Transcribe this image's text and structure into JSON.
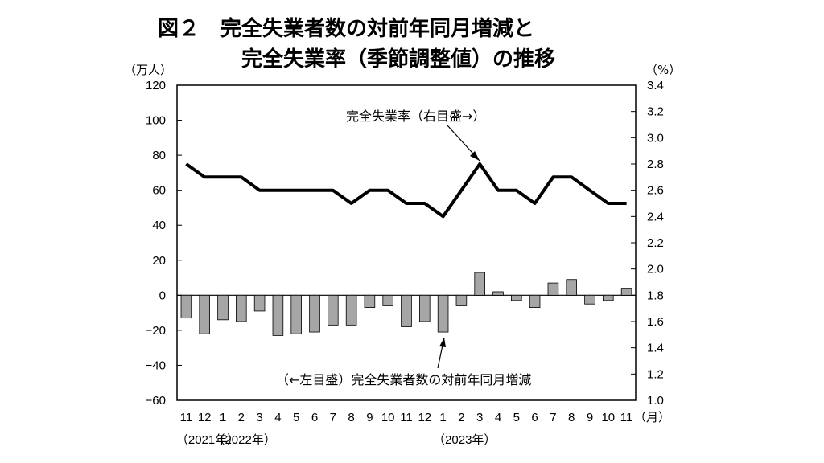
{
  "chart_data": {
    "type": "bar+line",
    "title_line1": "図２　完全失業者数の対前年同月増減と",
    "title_line2": "完全失業率（季節調整値）の推移",
    "left_unit": "（万人）",
    "right_unit": "（%）",
    "month_unit": "（月）",
    "categories": [
      "11",
      "12",
      "1",
      "2",
      "3",
      "4",
      "5",
      "6",
      "7",
      "8",
      "9",
      "10",
      "11",
      "12",
      "1",
      "2",
      "3",
      "4",
      "5",
      "6",
      "7",
      "8",
      "9",
      "10",
      "11"
    ],
    "year_labels": [
      {
        "index": 0,
        "label": "（2021年）"
      },
      {
        "index": 2,
        "label": "（2022年）"
      },
      {
        "index": 14,
        "label": "（2023年）"
      }
    ],
    "left_axis": {
      "min": -60,
      "max": 120,
      "ticks": [
        120,
        100,
        80,
        60,
        40,
        20,
        0,
        -20,
        -40,
        -60
      ]
    },
    "right_axis": {
      "min": 1.0,
      "max": 3.4,
      "ticks": [
        "3.4",
        "3.2",
        "3.0",
        "2.8",
        "2.6",
        "2.4",
        "2.2",
        "2.0",
        "1.8",
        "1.6",
        "1.4",
        "1.2",
        "1.0"
      ]
    },
    "series": [
      {
        "name": "（←左目盛）完全失業者数の対前年同月増減",
        "kind": "bar",
        "axis": "left",
        "color": "#a6a6a6",
        "values": [
          -13,
          -22,
          -14,
          -15,
          -9,
          -23,
          -22,
          -21,
          -17,
          -17,
          -7,
          -6,
          -18,
          -15,
          -21,
          -6,
          13,
          2,
          -3,
          -7,
          7,
          9,
          -5,
          -3,
          4
        ]
      },
      {
        "name": "完全失業率（右目盛→）",
        "kind": "line",
        "axis": "right",
        "color": "#000000",
        "values": [
          2.8,
          2.7,
          2.7,
          2.7,
          2.6,
          2.6,
          2.6,
          2.6,
          2.6,
          2.5,
          2.6,
          2.6,
          2.5,
          2.5,
          2.4,
          2.6,
          2.8,
          2.6,
          2.6,
          2.5,
          2.7,
          2.7,
          2.6,
          2.5,
          2.5
        ]
      }
    ]
  }
}
